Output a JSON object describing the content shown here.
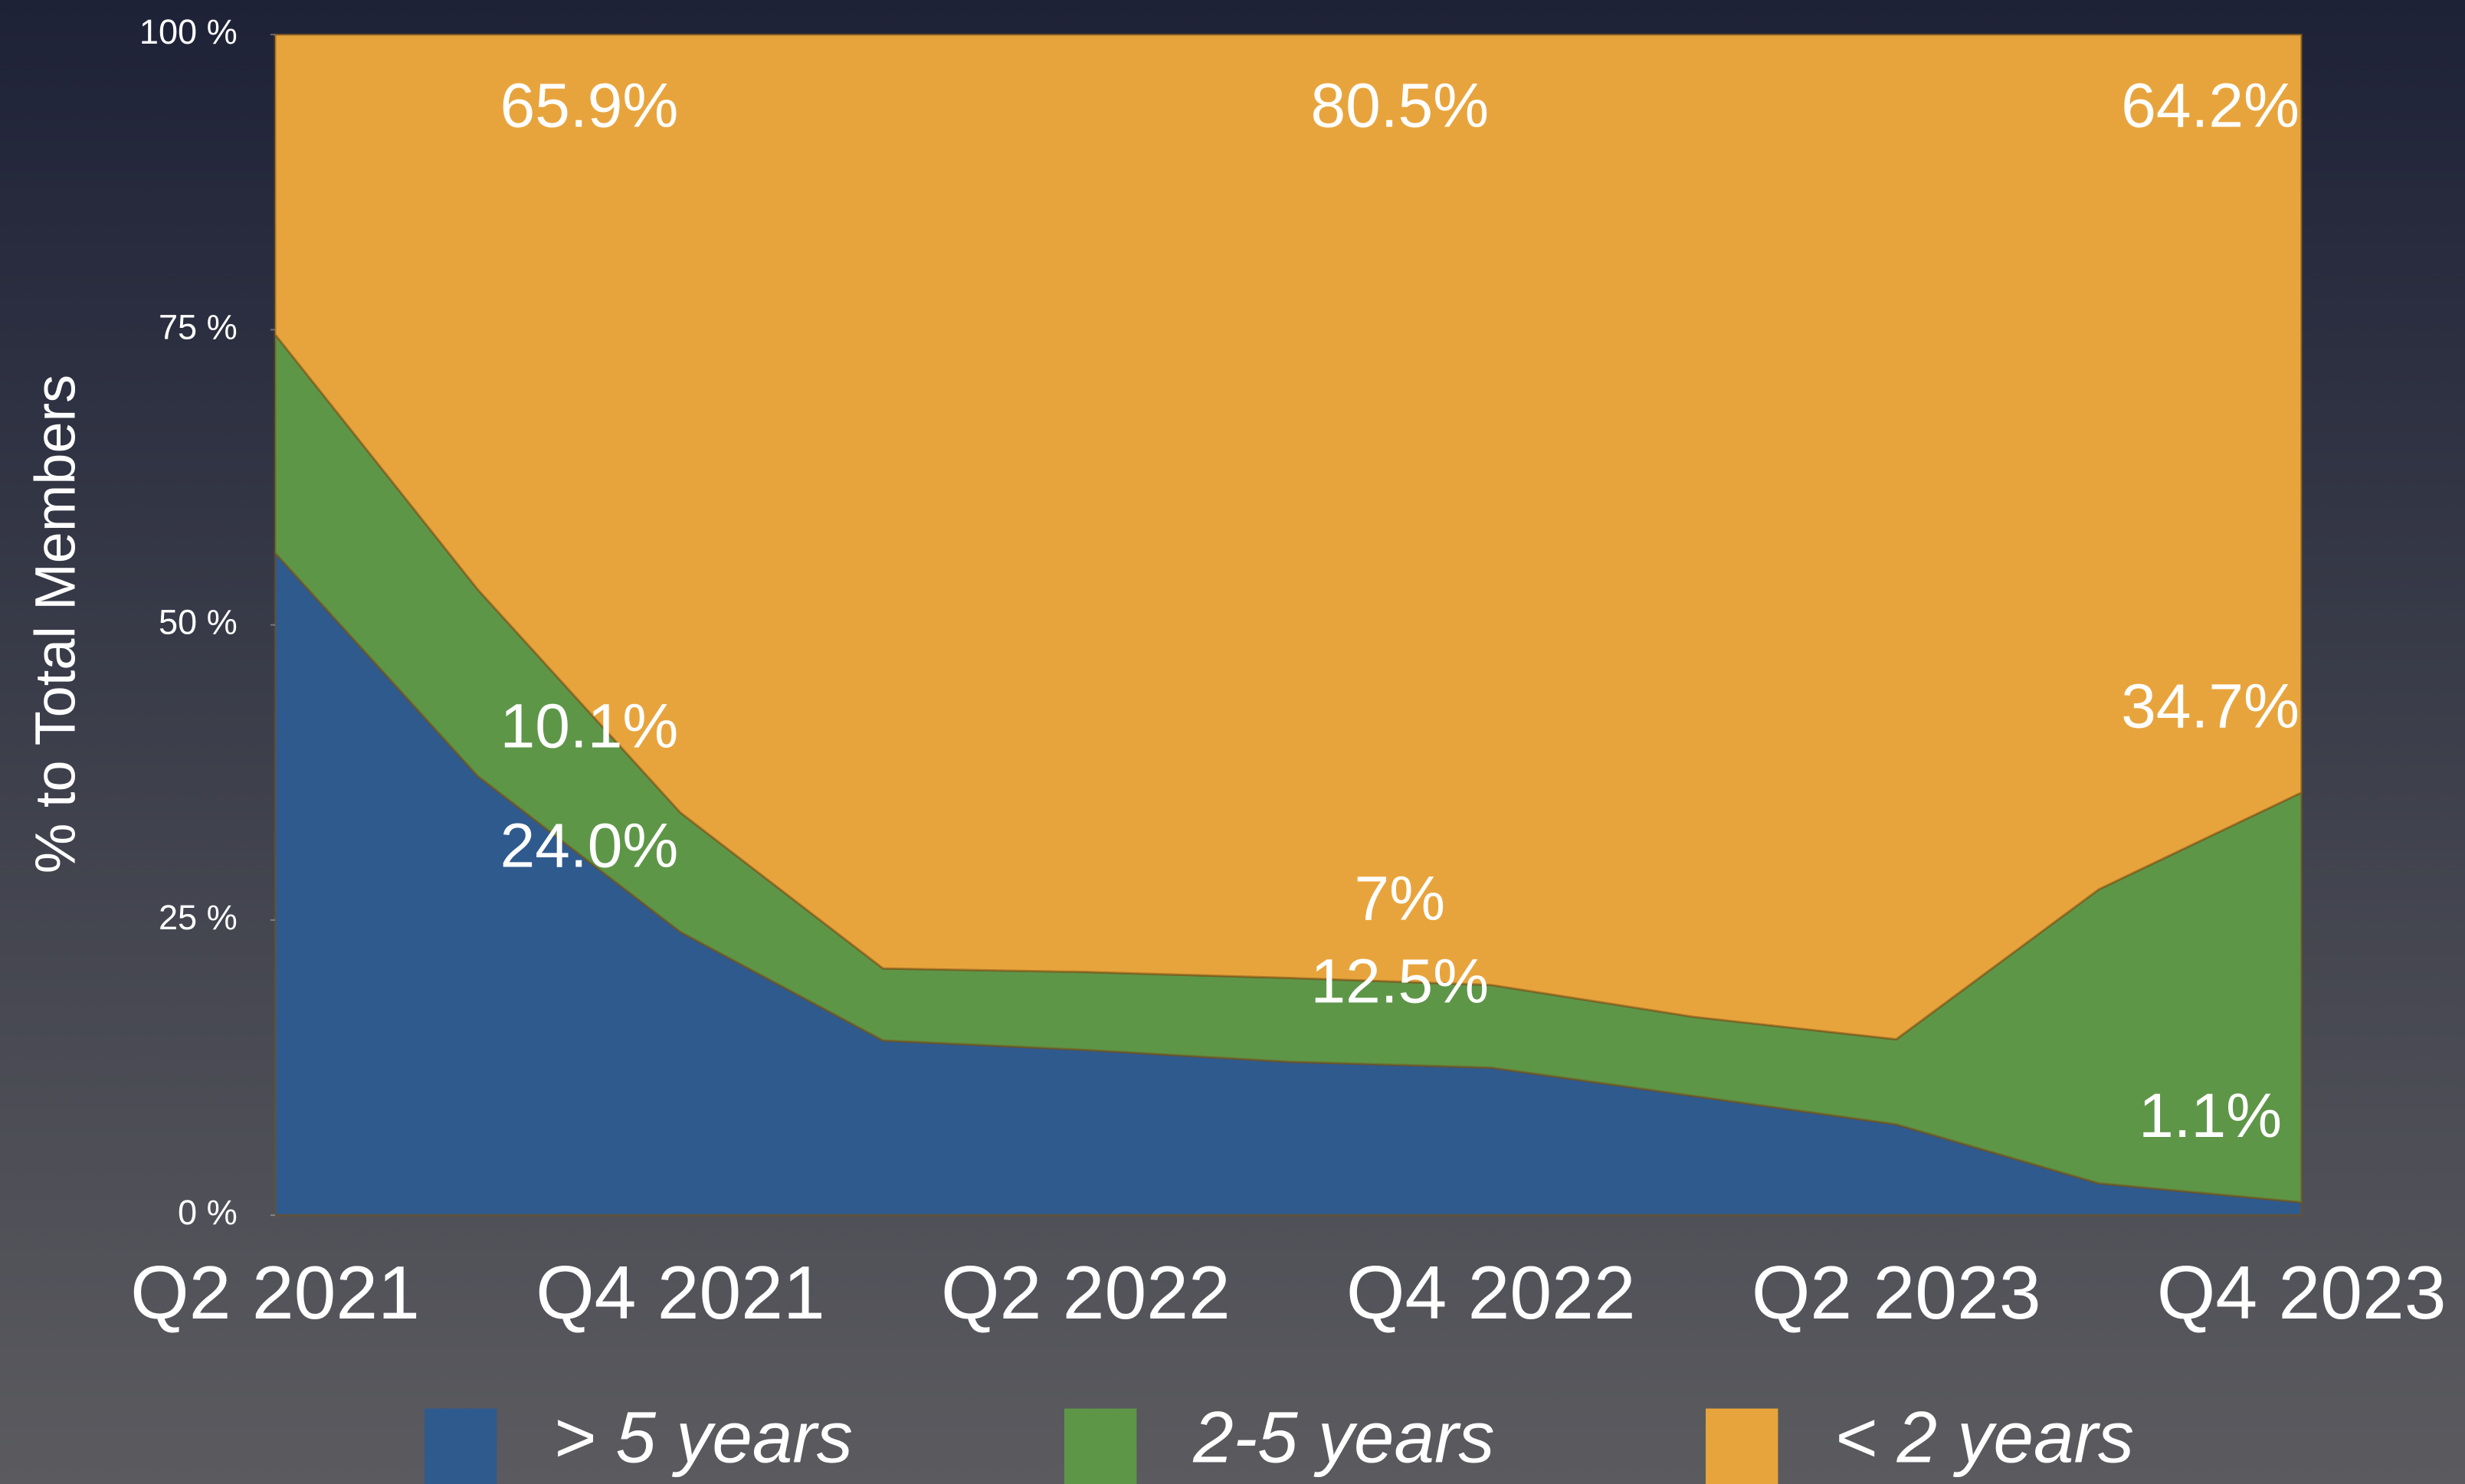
{
  "chart_data": {
    "type": "stacked_area",
    "y_axis_label": "% to Total Members",
    "categories": [
      "Q2 2021",
      null,
      "Q4 2021",
      null,
      "Q2 2022",
      null,
      "Q4 2022",
      null,
      "Q2 2023",
      null,
      "Q4 2023"
    ],
    "series": [
      {
        "name": "> 5 years",
        "color": "#2f5a8e",
        "values": [
          56.1,
          37.2,
          24.0,
          14.8,
          14.0,
          13.0,
          12.5,
          10.1,
          7.7,
          2.7,
          1.1
        ],
        "value_labels": [
          null,
          null,
          "24.0%",
          null,
          null,
          null,
          "12.5%",
          null,
          null,
          null,
          "1.1%"
        ]
      },
      {
        "name": "2-5 years",
        "color": "#5e9648",
        "values": [
          18.5,
          15.8,
          10.1,
          6.1,
          6.6,
          7.1,
          7,
          6.7,
          7.2,
          24.9,
          34.7
        ],
        "value_labels": [
          null,
          null,
          "10.1%",
          null,
          null,
          null,
          "7%",
          null,
          null,
          null,
          "34.7%"
        ]
      },
      {
        "name": "< 2 years",
        "color": "#e8a43c",
        "values": [
          25.4,
          47.0,
          65.9,
          79.1,
          79.4,
          79.9,
          80.5,
          83.2,
          85.1,
          72.4,
          64.2
        ],
        "value_labels": [
          null,
          null,
          "65.9%",
          null,
          null,
          null,
          "80.5%",
          null,
          null,
          null,
          "64.2%"
        ]
      }
    ],
    "ylim": [
      0,
      100
    ],
    "yticks": [
      {
        "value": 0,
        "label": "0 %"
      },
      {
        "value": 25,
        "label": "25 %"
      },
      {
        "value": 50,
        "label": "50 %"
      },
      {
        "value": 75,
        "label": "75 %"
      },
      {
        "value": 100,
        "label": "100 %"
      }
    ],
    "grid": false,
    "legend": "bottom"
  }
}
